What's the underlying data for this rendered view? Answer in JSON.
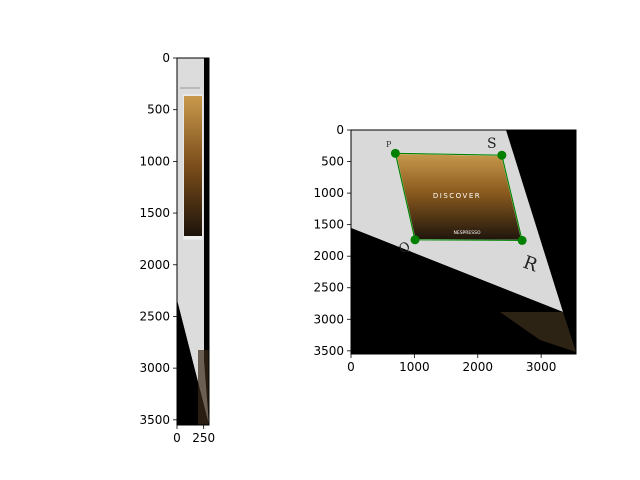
{
  "chart_data": [
    {
      "type": "image",
      "title": "",
      "xlabel": "",
      "ylabel": "",
      "xlim": [
        0,
        300
      ],
      "ylim": [
        3550,
        0
      ],
      "xticks": [
        0,
        250
      ],
      "yticks": [
        0,
        500,
        1000,
        1500,
        2000,
        2500,
        3000,
        3500
      ],
      "grid": false,
      "image_description_colors": {
        "background": "#000000",
        "paper": "#d9d9d9",
        "card": "#8a5a1e"
      }
    },
    {
      "type": "image-with-markers",
      "title": "",
      "xlabel": "",
      "ylabel": "",
      "xlim": [
        0,
        3550
      ],
      "ylim": [
        3550,
        0
      ],
      "xticks": [
        0,
        1000,
        2000,
        3000
      ],
      "yticks": [
        0,
        500,
        1000,
        1500,
        2000,
        2500,
        3000,
        3500
      ],
      "grid": false,
      "marker_color": "#008000",
      "outline_color": "#008000",
      "corner_points": [
        {
          "x": 700,
          "y": 370
        },
        {
          "x": 2380,
          "y": 400
        },
        {
          "x": 2700,
          "y": 1750
        },
        {
          "x": 1010,
          "y": 1740
        }
      ],
      "image_text": {
        "corner_p": "P",
        "corner_s": "S",
        "corner_q": "Q",
        "corner_r": "R",
        "card_headline": "DISCOVER",
        "card_brand": "NESPRESSO"
      }
    }
  ]
}
